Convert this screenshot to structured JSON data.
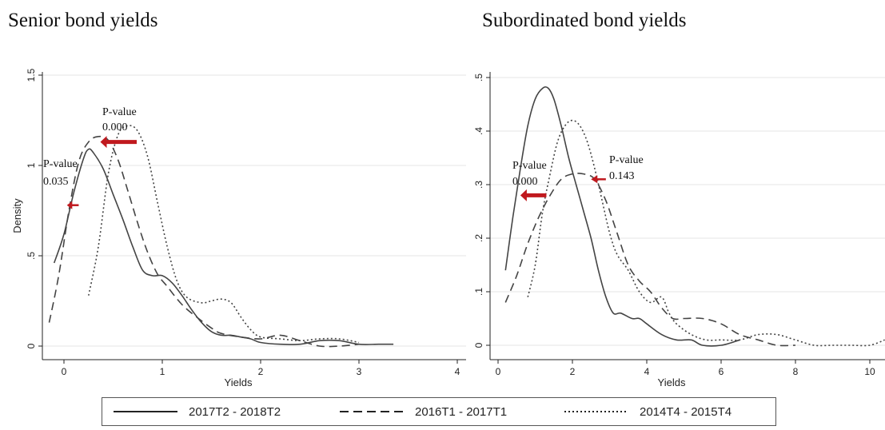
{
  "colors": {
    "series_line": "#444444",
    "arrow": "#c0191e",
    "grid": "#e4e4e4",
    "axis": "#222222"
  },
  "legend": {
    "items": [
      {
        "label": "2017T2 - 2018T2",
        "style": "solid"
      },
      {
        "label": "2016T1 - 2017T1",
        "style": "dashed"
      },
      {
        "label": "2014T4 - 2015T4",
        "style": "dotted"
      }
    ]
  },
  "chart_data": [
    {
      "type": "line",
      "title": "Senior bond yields",
      "xlabel": "Yields",
      "ylabel": "Density",
      "xlim": [
        -0.2,
        4.0
      ],
      "ylim": [
        0,
        1.5
      ],
      "xticks": [
        0,
        1,
        2,
        3,
        4
      ],
      "yticks": [
        0,
        0.5,
        1,
        1.5
      ],
      "ytick_labels": [
        "0",
        ".5",
        "1",
        "1.5"
      ],
      "grid": true,
      "series": [
        {
          "name": "2017T2 - 2018T2",
          "style": "solid",
          "x": [
            -0.1,
            0.0,
            0.1,
            0.2,
            0.25,
            0.3,
            0.4,
            0.5,
            0.6,
            0.7,
            0.8,
            0.9,
            1.0,
            1.1,
            1.2,
            1.3,
            1.4,
            1.5,
            1.6,
            1.7,
            1.8,
            1.9,
            2.0,
            2.2,
            2.4,
            2.6,
            2.8,
            3.0,
            3.2,
            3.35
          ],
          "y": [
            0.46,
            0.62,
            0.85,
            1.04,
            1.09,
            1.07,
            0.98,
            0.84,
            0.7,
            0.55,
            0.42,
            0.39,
            0.39,
            0.35,
            0.28,
            0.2,
            0.13,
            0.08,
            0.06,
            0.06,
            0.05,
            0.04,
            0.02,
            0.01,
            0.01,
            0.03,
            0.03,
            0.01,
            0.01,
            0.01
          ]
        },
        {
          "name": "2016T1 - 2017T1",
          "style": "dashed",
          "x": [
            -0.15,
            -0.05,
            0.05,
            0.15,
            0.25,
            0.35,
            0.45,
            0.55,
            0.65,
            0.75,
            0.85,
            0.95,
            1.05,
            1.2,
            1.35,
            1.5,
            1.6,
            1.8,
            2.0,
            2.2,
            2.4,
            2.6,
            2.8,
            3.0
          ],
          "y": [
            0.13,
            0.4,
            0.75,
            1.02,
            1.13,
            1.16,
            1.14,
            1.03,
            0.86,
            0.68,
            0.52,
            0.4,
            0.33,
            0.23,
            0.16,
            0.1,
            0.07,
            0.05,
            0.04,
            0.06,
            0.03,
            0.0,
            0.0,
            0.01
          ]
        },
        {
          "name": "2014T4 - 2015T4",
          "style": "dotted",
          "x": [
            0.25,
            0.35,
            0.45,
            0.55,
            0.65,
            0.75,
            0.85,
            0.95,
            1.05,
            1.15,
            1.25,
            1.4,
            1.5,
            1.6,
            1.7,
            1.8,
            1.9,
            2.0,
            2.2,
            2.4,
            2.6,
            2.8,
            3.0
          ],
          "y": [
            0.28,
            0.55,
            0.95,
            1.17,
            1.22,
            1.19,
            1.05,
            0.8,
            0.55,
            0.36,
            0.27,
            0.24,
            0.25,
            0.26,
            0.24,
            0.16,
            0.09,
            0.05,
            0.04,
            0.03,
            0.04,
            0.04,
            0.02
          ]
        }
      ],
      "annotations": [
        {
          "label": "P-value",
          "value": "0.000",
          "arrow_from_x": 0.74,
          "arrow_to_x": 0.37,
          "arrow_y": 1.13
        },
        {
          "label": "P-value",
          "value": "0.035",
          "arrow_from_x": 0.15,
          "arrow_to_x": 0.03,
          "arrow_y": 0.78
        }
      ]
    },
    {
      "type": "line",
      "title": "Subordinated bond yields",
      "xlabel": "Yields",
      "ylabel": "",
      "xlim": [
        -0.1,
        10.4
      ],
      "ylim": [
        0,
        0.5
      ],
      "xticks": [
        0,
        2,
        4,
        6,
        8,
        10
      ],
      "yticks": [
        0,
        0.1,
        0.2,
        0.3,
        0.4,
        0.5
      ],
      "ytick_labels": [
        "0",
        ".1",
        ".2",
        ".3",
        ".4",
        ".5"
      ],
      "grid": true,
      "series": [
        {
          "name": "2017T2 - 2018T2",
          "style": "solid",
          "x": [
            0.2,
            0.4,
            0.6,
            0.8,
            1.0,
            1.2,
            1.35,
            1.5,
            1.7,
            1.9,
            2.1,
            2.3,
            2.5,
            2.7,
            2.9,
            3.1,
            3.3,
            3.6,
            3.8,
            4.0,
            4.4,
            4.8,
            5.2,
            5.5,
            6.0,
            6.5
          ],
          "y": [
            0.14,
            0.24,
            0.33,
            0.41,
            0.46,
            0.48,
            0.48,
            0.46,
            0.41,
            0.35,
            0.3,
            0.25,
            0.2,
            0.14,
            0.09,
            0.06,
            0.06,
            0.05,
            0.05,
            0.04,
            0.02,
            0.01,
            0.01,
            0.0,
            0.0,
            0.01
          ]
        },
        {
          "name": "2016T1 - 2017T1",
          "style": "dashed",
          "x": [
            0.2,
            0.5,
            0.8,
            1.1,
            1.4,
            1.7,
            2.0,
            2.3,
            2.6,
            2.9,
            3.2,
            3.5,
            3.8,
            4.1,
            4.4,
            4.7,
            5.0,
            5.5,
            6.0,
            6.5,
            7.0,
            7.5,
            8.0
          ],
          "y": [
            0.08,
            0.13,
            0.19,
            0.24,
            0.28,
            0.31,
            0.32,
            0.32,
            0.31,
            0.27,
            0.21,
            0.15,
            0.12,
            0.1,
            0.07,
            0.05,
            0.05,
            0.05,
            0.04,
            0.02,
            0.01,
            0.0,
            0.0
          ]
        },
        {
          "name": "2014T4 - 2015T4",
          "style": "dotted",
          "x": [
            0.8,
            1.0,
            1.2,
            1.4,
            1.6,
            1.8,
            2.0,
            2.2,
            2.4,
            2.6,
            2.8,
            3.0,
            3.2,
            3.5,
            3.8,
            4.1,
            4.4,
            4.6,
            4.8,
            5.2,
            5.6,
            6.0,
            6.5,
            7.0,
            7.5,
            8.0,
            8.5,
            9.0,
            9.5,
            10.0,
            10.4
          ],
          "y": [
            0.09,
            0.15,
            0.25,
            0.32,
            0.38,
            0.41,
            0.42,
            0.41,
            0.38,
            0.33,
            0.27,
            0.21,
            0.17,
            0.14,
            0.1,
            0.08,
            0.09,
            0.06,
            0.04,
            0.02,
            0.01,
            0.01,
            0.01,
            0.02,
            0.02,
            0.01,
            0.0,
            0.0,
            0.0,
            0.0,
            0.01
          ]
        }
      ],
      "annotations": [
        {
          "label": "P-value",
          "value": "0.000",
          "arrow_from_x": 1.3,
          "arrow_to_x": 0.6,
          "arrow_y": 0.28
        },
        {
          "label": "P-value",
          "value": "0.143",
          "arrow_from_x": 2.9,
          "arrow_to_x": 2.5,
          "arrow_y": 0.31
        }
      ]
    }
  ]
}
